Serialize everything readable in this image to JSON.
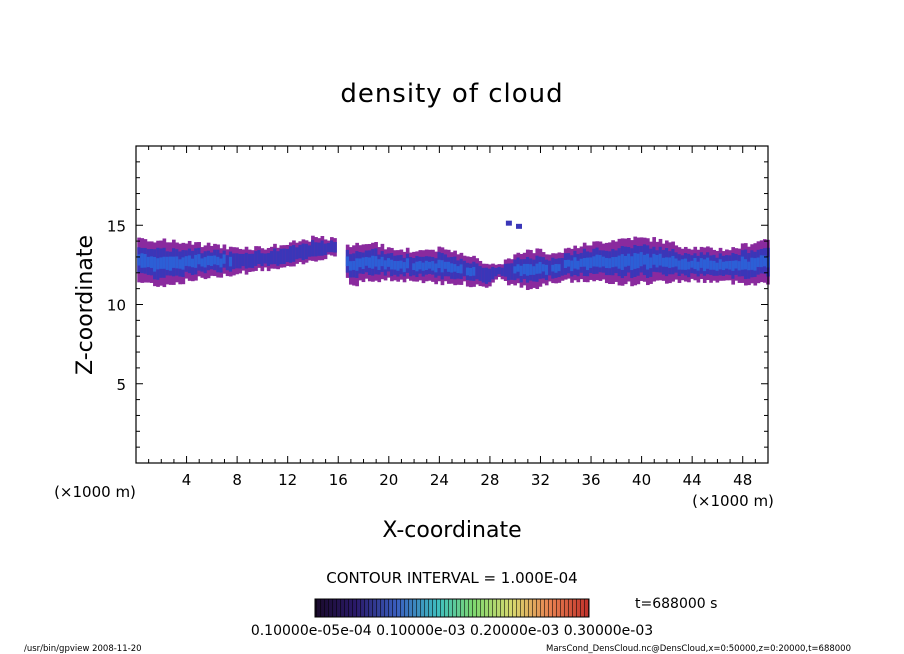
{
  "chart_data": {
    "type": "heatmap",
    "title": "density of cloud",
    "xlabel": "X-coordinate",
    "ylabel": "Z-coordinate",
    "x_unit_left": "(×1000 m)",
    "x_unit_right": "(×1000 m)",
    "xlim": [
      0,
      50
    ],
    "ylim": [
      0,
      20
    ],
    "x_ticks": [
      4,
      8,
      12,
      16,
      20,
      24,
      28,
      32,
      36,
      40,
      44,
      48
    ],
    "y_ticks": [
      5,
      10,
      15
    ],
    "contour_interval": "CONTOUR INTERVAL = 1.000E-04",
    "time": "t=688000 s",
    "colorbar_labels": "0.10000e-05e-04 0.10000e-03 0.20000e-03 0.30000e-03",
    "cloud_profile": [
      {
        "x": 0.2,
        "bottom": 11.4,
        "top": 14.2
      },
      {
        "x": 2,
        "bottom": 11.2,
        "top": 14.0
      },
      {
        "x": 4,
        "bottom": 11.5,
        "top": 13.9
      },
      {
        "x": 6,
        "bottom": 11.8,
        "top": 13.7
      },
      {
        "x": 8,
        "bottom": 12.0,
        "top": 13.6
      },
      {
        "x": 10,
        "bottom": 12.2,
        "top": 13.6
      },
      {
        "x": 12,
        "bottom": 12.3,
        "top": 13.8
      },
      {
        "x": 14,
        "bottom": 12.8,
        "top": 14.2
      },
      {
        "x": 15.5,
        "bottom": 13.2,
        "top": 14.1
      },
      {
        "x": 17,
        "bottom": 11.2,
        "top": 13.7
      },
      {
        "x": 18,
        "bottom": 11.5,
        "top": 14.0
      },
      {
        "x": 20,
        "bottom": 11.6,
        "top": 13.5
      },
      {
        "x": 22,
        "bottom": 11.5,
        "top": 13.4
      },
      {
        "x": 24,
        "bottom": 11.4,
        "top": 13.5
      },
      {
        "x": 26,
        "bottom": 11.3,
        "top": 13.2
      },
      {
        "x": 27.5,
        "bottom": 11.0,
        "top": 12.6
      },
      {
        "x": 28.5,
        "bottom": 11.8,
        "top": 12.4
      },
      {
        "x": 29.5,
        "bottom": 11.3,
        "top": 13.0
      },
      {
        "x": 31,
        "bottom": 11.0,
        "top": 13.4
      },
      {
        "x": 33,
        "bottom": 11.5,
        "top": 13.3
      },
      {
        "x": 35,
        "bottom": 11.5,
        "top": 13.7
      },
      {
        "x": 37,
        "bottom": 11.4,
        "top": 14.0
      },
      {
        "x": 39,
        "bottom": 11.3,
        "top": 14.2
      },
      {
        "x": 41,
        "bottom": 11.4,
        "top": 14.1
      },
      {
        "x": 43,
        "bottom": 11.5,
        "top": 13.7
      },
      {
        "x": 45,
        "bottom": 11.5,
        "top": 13.5
      },
      {
        "x": 47,
        "bottom": 11.4,
        "top": 13.5
      },
      {
        "x": 50,
        "bottom": 11.3,
        "top": 14.2
      }
    ],
    "isolated_cells": [
      {
        "x": 29.5,
        "z": 15.1
      },
      {
        "x": 30.3,
        "z": 14.9
      }
    ],
    "colors": {
      "outer": "#8a2a9e",
      "middle": "#3a36b8",
      "core": "#2c5fd6"
    }
  },
  "footer": {
    "left": "/usr/bin/gpview   2008-11-20",
    "right": "MarsCond_DensCloud.nc@DensCloud,x=0:50000,z=0:20000,t=688000"
  }
}
